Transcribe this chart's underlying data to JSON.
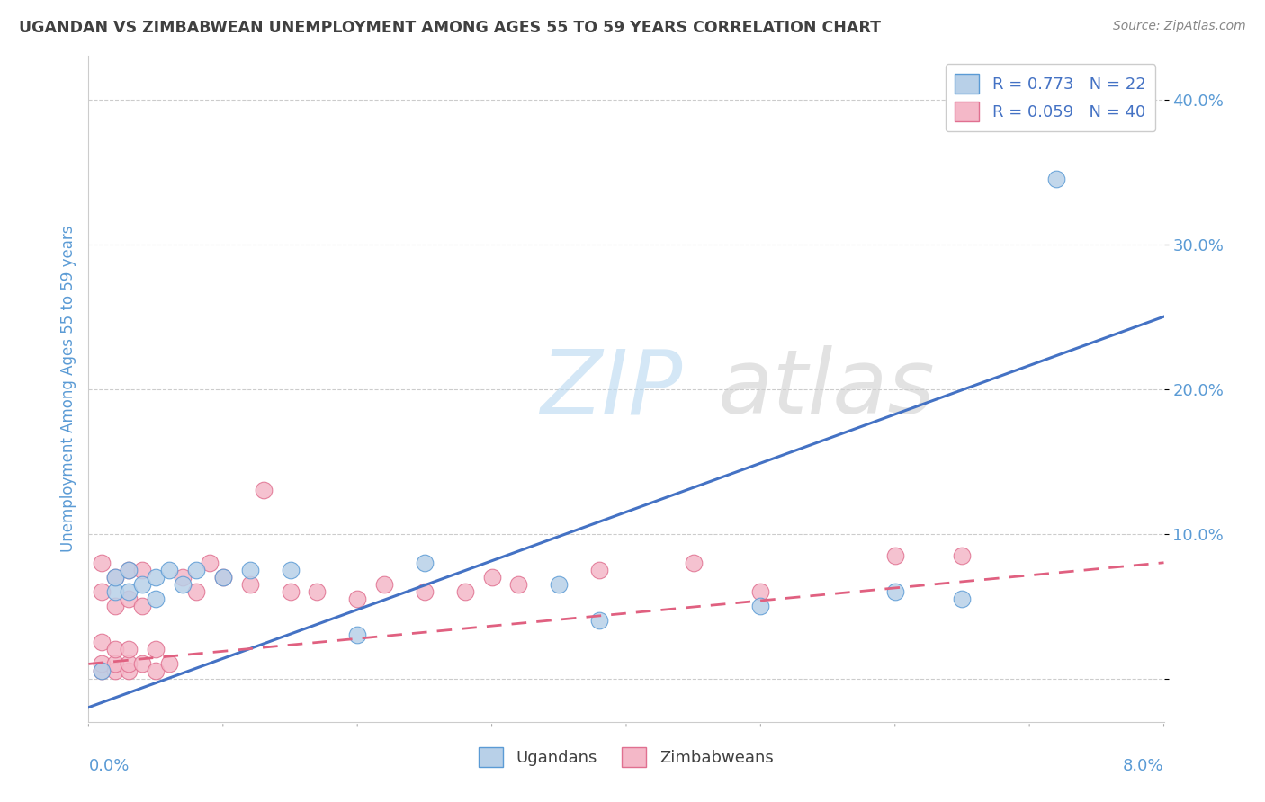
{
  "title": "UGANDAN VS ZIMBABWEAN UNEMPLOYMENT AMONG AGES 55 TO 59 YEARS CORRELATION CHART",
  "source": "Source: ZipAtlas.com",
  "ylabel": "Unemployment Among Ages 55 to 59 years",
  "xlim": [
    0.0,
    0.08
  ],
  "ylim": [
    -0.03,
    0.43
  ],
  "yticks": [
    0.0,
    0.1,
    0.2,
    0.3,
    0.4
  ],
  "ytick_labels": [
    "",
    "10.0%",
    "20.0%",
    "30.0%",
    "40.0%"
  ],
  "ugandan_R": 0.773,
  "ugandan_N": 22,
  "zimbabwean_R": 0.059,
  "zimbabwean_N": 40,
  "ugandan_color": "#b8d0e8",
  "ugandan_edge_color": "#5b9bd5",
  "ugandan_line_color": "#4472c4",
  "zimbabwean_color": "#f4b8c8",
  "zimbabwean_edge_color": "#e07090",
  "zimbabwean_line_color": "#e06080",
  "background_color": "#ffffff",
  "grid_color": "#cccccc",
  "title_color": "#404040",
  "axis_label_color": "#5b9bd5",
  "tick_label_color": "#5b9bd5",
  "ugandan_x": [
    0.001,
    0.002,
    0.002,
    0.003,
    0.003,
    0.004,
    0.005,
    0.005,
    0.006,
    0.007,
    0.008,
    0.01,
    0.012,
    0.015,
    0.02,
    0.025,
    0.035,
    0.038,
    0.05,
    0.06,
    0.065,
    0.072
  ],
  "ugandan_y": [
    0.005,
    0.06,
    0.07,
    0.06,
    0.075,
    0.065,
    0.07,
    0.055,
    0.075,
    0.065,
    0.075,
    0.07,
    0.075,
    0.075,
    0.03,
    0.08,
    0.065,
    0.04,
    0.05,
    0.06,
    0.055,
    0.345
  ],
  "zimbabwean_x": [
    0.001,
    0.001,
    0.001,
    0.001,
    0.001,
    0.002,
    0.002,
    0.002,
    0.002,
    0.002,
    0.003,
    0.003,
    0.003,
    0.003,
    0.003,
    0.004,
    0.004,
    0.004,
    0.005,
    0.005,
    0.006,
    0.007,
    0.008,
    0.009,
    0.01,
    0.012,
    0.013,
    0.015,
    0.017,
    0.02,
    0.022,
    0.025,
    0.028,
    0.03,
    0.032,
    0.038,
    0.045,
    0.05,
    0.06,
    0.065
  ],
  "zimbabwean_y": [
    0.005,
    0.01,
    0.025,
    0.06,
    0.08,
    0.005,
    0.01,
    0.02,
    0.05,
    0.07,
    0.005,
    0.01,
    0.02,
    0.055,
    0.075,
    0.01,
    0.05,
    0.075,
    0.005,
    0.02,
    0.01,
    0.07,
    0.06,
    0.08,
    0.07,
    0.065,
    0.13,
    0.06,
    0.06,
    0.055,
    0.065,
    0.06,
    0.06,
    0.07,
    0.065,
    0.075,
    0.08,
    0.06,
    0.085,
    0.085
  ],
  "ug_line_x0": 0.0,
  "ug_line_y0": -0.02,
  "ug_line_x1": 0.08,
  "ug_line_y1": 0.25,
  "zim_line_x0": 0.0,
  "zim_line_y0": 0.01,
  "zim_line_x1": 0.08,
  "zim_line_y1": 0.08
}
